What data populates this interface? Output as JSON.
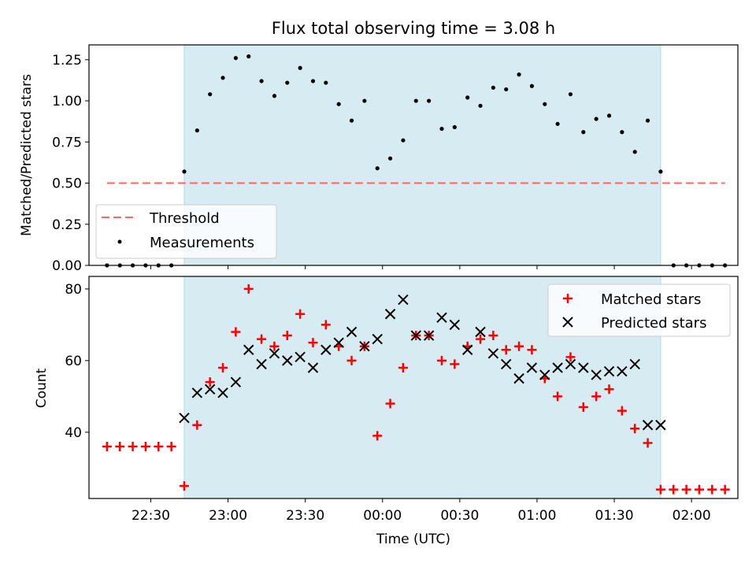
{
  "figure": {
    "title": "Flux total observing time = 3.08 h"
  },
  "colors": {
    "band": "#add8e6",
    "threshold": "#ff6666",
    "measurement": "#000000",
    "matched": "#ff0000",
    "predicted": "#000000"
  },
  "chart_data": [
    {
      "type": "scatter",
      "title": "Flux total observing time = 3.08 h",
      "xlabel": "",
      "ylabel": "Matched/Predicted stars",
      "xlim": [
        "22:06",
        "02:18"
      ],
      "ylim": [
        0,
        1.34
      ],
      "yticks": [
        "0.00",
        "0.25",
        "0.50",
        "0.75",
        "1.00",
        "1.25"
      ],
      "observing_window": [
        "22:43",
        "01:48"
      ],
      "legend": {
        "position": "lower-left",
        "entries": [
          "Threshold",
          "Measurements"
        ]
      },
      "threshold": {
        "name": "Threshold",
        "y": 0.5,
        "x_range": [
          "22:13",
          "02:13"
        ]
      },
      "measurements": {
        "name": "Measurements",
        "x": [
          "22:13",
          "22:18",
          "22:23",
          "22:28",
          "22:33",
          "22:38",
          "22:43",
          "22:48",
          "22:53",
          "22:58",
          "23:03",
          "23:08",
          "23:13",
          "23:18",
          "23:23",
          "23:28",
          "23:33",
          "23:38",
          "23:43",
          "23:48",
          "23:53",
          "23:58",
          "00:03",
          "00:08",
          "00:13",
          "00:18",
          "00:23",
          "00:28",
          "00:33",
          "00:38",
          "00:43",
          "00:48",
          "00:53",
          "00:58",
          "01:03",
          "01:08",
          "01:13",
          "01:18",
          "01:23",
          "01:28",
          "01:33",
          "01:38",
          "01:43",
          "01:48",
          "01:53",
          "01:58",
          "02:03",
          "02:08",
          "02:13"
        ],
        "y": [
          0,
          0,
          0,
          0,
          0,
          0,
          0.57,
          0.82,
          1.04,
          1.14,
          1.26,
          1.27,
          1.12,
          1.03,
          1.11,
          1.2,
          1.12,
          1.11,
          0.98,
          0.88,
          1.0,
          0.59,
          0.65,
          0.76,
          1.0,
          1.0,
          0.83,
          0.84,
          1.02,
          0.97,
          1.08,
          1.07,
          1.16,
          1.09,
          0.98,
          0.86,
          1.04,
          0.81,
          0.89,
          0.91,
          0.81,
          0.69,
          0.88,
          0.57,
          0,
          0,
          0,
          0,
          0
        ]
      }
    },
    {
      "type": "scatter",
      "title": "",
      "xlabel": "Time (UTC)",
      "ylabel": "Count",
      "xlim": [
        "22:06",
        "02:18"
      ],
      "ylim": [
        21.5,
        83.5
      ],
      "yticks": [
        "40",
        "60",
        "80"
      ],
      "xticks": [
        "22:30",
        "23:00",
        "23:30",
        "00:00",
        "00:30",
        "01:00",
        "01:30",
        "02:00"
      ],
      "observing_window": [
        "22:43",
        "01:48"
      ],
      "legend": {
        "position": "top-right",
        "entries": [
          "Matched stars",
          "Predicted stars"
        ]
      },
      "series": [
        {
          "name": "Matched stars",
          "marker": "plus",
          "x": [
            "22:13",
            "22:18",
            "22:23",
            "22:28",
            "22:33",
            "22:38",
            "22:43",
            "22:48",
            "22:53",
            "22:58",
            "23:03",
            "23:08",
            "23:13",
            "23:18",
            "23:23",
            "23:28",
            "23:33",
            "23:38",
            "23:43",
            "23:48",
            "23:53",
            "23:58",
            "00:03",
            "00:08",
            "00:13",
            "00:18",
            "00:23",
            "00:28",
            "00:33",
            "00:38",
            "00:43",
            "00:48",
            "00:53",
            "00:58",
            "01:03",
            "01:08",
            "01:13",
            "01:18",
            "01:23",
            "01:28",
            "01:33",
            "01:38",
            "01:43",
            "01:48",
            "01:53",
            "01:58",
            "02:03",
            "02:08",
            "02:13"
          ],
          "values": [
            36,
            36,
            36,
            36,
            36,
            36,
            25,
            42,
            54,
            58,
            68,
            80,
            66,
            64,
            67,
            73,
            65,
            70,
            64,
            60,
            64,
            39,
            48,
            58,
            67,
            67,
            60,
            59,
            64,
            66,
            67,
            63,
            64,
            63,
            55,
            50,
            61,
            47,
            50,
            52,
            46,
            41,
            37,
            24,
            24,
            24,
            24,
            24,
            24
          ]
        },
        {
          "name": "Predicted stars",
          "marker": "x",
          "x": [
            "22:43",
            "22:48",
            "22:53",
            "22:58",
            "23:03",
            "23:08",
            "23:13",
            "23:18",
            "23:23",
            "23:28",
            "23:33",
            "23:38",
            "23:43",
            "23:48",
            "23:53",
            "23:58",
            "00:03",
            "00:08",
            "00:13",
            "00:18",
            "00:23",
            "00:28",
            "00:33",
            "00:38",
            "00:43",
            "00:48",
            "00:53",
            "00:58",
            "01:03",
            "01:08",
            "01:13",
            "01:18",
            "01:23",
            "01:28",
            "01:33",
            "01:38",
            "01:43",
            "01:48"
          ],
          "values": [
            44,
            51,
            52,
            51,
            54,
            63,
            59,
            62,
            60,
            61,
            58,
            63,
            65,
            68,
            64,
            66,
            73,
            77,
            67,
            67,
            72,
            70,
            63,
            68,
            62,
            59,
            55,
            58,
            56,
            58,
            59,
            58,
            56,
            57,
            57,
            59,
            42,
            42
          ]
        }
      ]
    }
  ]
}
